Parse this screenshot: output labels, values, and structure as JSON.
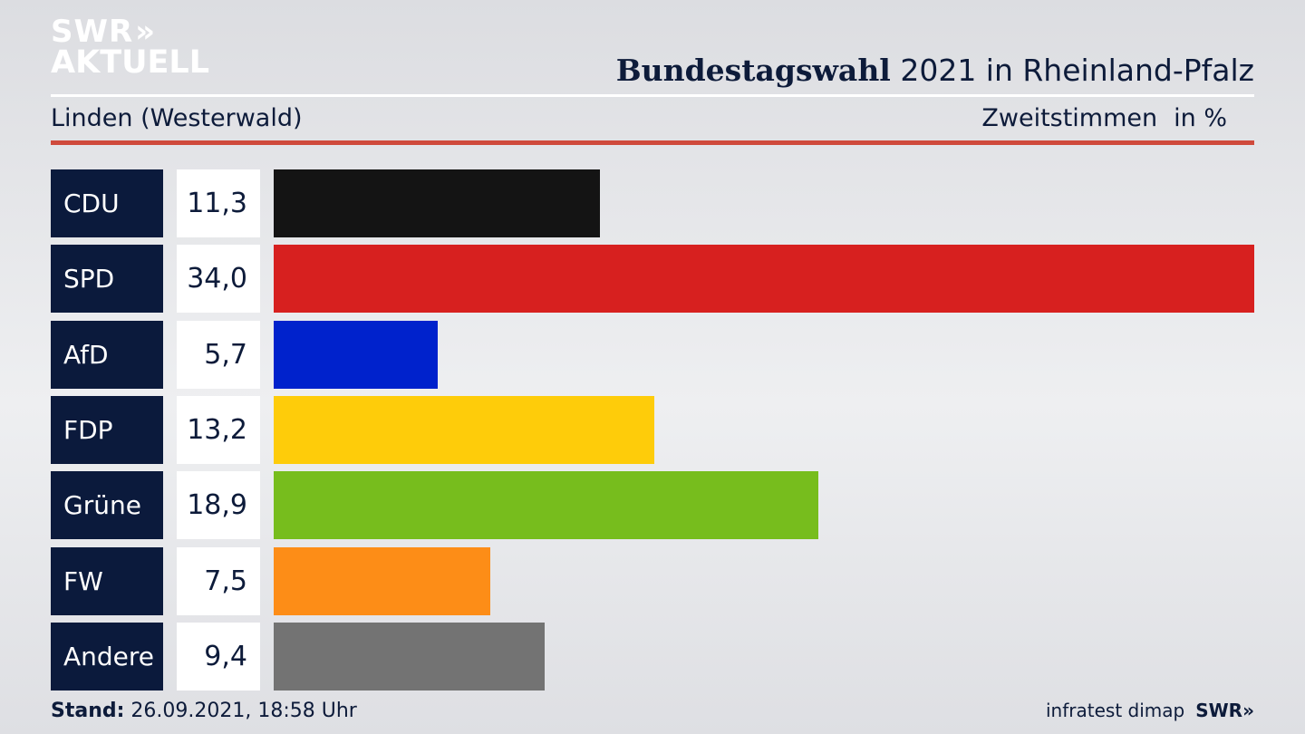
{
  "logo": {
    "line1": "SWR",
    "line1_arrows": "»",
    "line2": "AKTUELL"
  },
  "header": {
    "title_bold": "Bundestagswahl",
    "title_rest": " 2021 in Rheinland-Pfalz",
    "region": "Linden (Westerwald)",
    "vote_type": "Zweitstimmen",
    "unit": "in %"
  },
  "chart_data": {
    "type": "bar",
    "orientation": "horizontal",
    "categories": [
      "CDU",
      "SPD",
      "AfD",
      "FDP",
      "Grüne",
      "FW",
      "Andere"
    ],
    "values": [
      11.3,
      34.0,
      5.7,
      13.2,
      18.9,
      7.5,
      9.4
    ],
    "value_labels": [
      "11,3",
      "34,0",
      "5,7",
      "13,2",
      "18,9",
      "7,5",
      "9,4"
    ],
    "colors": [
      "#141414",
      "#d7201f",
      "#0022cc",
      "#fecc0a",
      "#77bd1d",
      "#fd8d17",
      "#737373"
    ],
    "xlim": [
      0,
      34.0
    ]
  },
  "footer": {
    "stand_label": "Stand:",
    "stand_value": " 26.09.2021, 18:58 Uhr",
    "source": "infratest dimap",
    "brand": "SWR",
    "brand_arrows": "»"
  }
}
